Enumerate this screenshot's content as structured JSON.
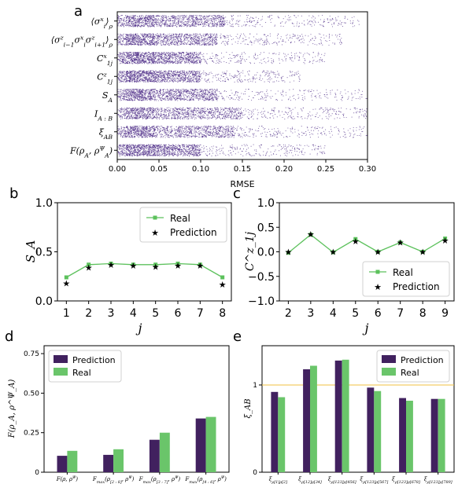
{
  "chart_data": [
    {
      "panel": "a",
      "type": "scatter",
      "xlabel": "RMSE",
      "xlim": [
        0,
        0.3
      ],
      "xticks": [
        "0.00",
        "0.05",
        "0.10",
        "0.15",
        "0.20",
        "0.25",
        "0.30"
      ],
      "categories": [
        "⟨σ^x_i⟩_ρ",
        "⟨σ^z_{i−1}σ^x_iσ^z_{i+1}⟩_ρ",
        "C^x_1j",
        "C^z_1j",
        "S_A",
        "I_A:B",
        "ξ_AB",
        "F(ρ_A, ρ^Ψ_A)"
      ],
      "color": "#4b2a85",
      "point_density": [
        {
          "core": [
            0.0,
            0.13
          ],
          "tail_max": 0.29
        },
        {
          "core": [
            0.0,
            0.12
          ],
          "tail_max": 0.27
        },
        {
          "core": [
            0.0,
            0.1
          ],
          "tail_max": 0.25
        },
        {
          "core": [
            0.0,
            0.1
          ],
          "tail_max": 0.22
        },
        {
          "core": [
            0.0,
            0.12
          ],
          "tail_max": 0.3
        },
        {
          "core": [
            0.0,
            0.15
          ],
          "tail_max": 0.3
        },
        {
          "core": [
            0.0,
            0.14
          ],
          "tail_max": 0.3
        },
        {
          "core": [
            0.0,
            0.1
          ],
          "tail_max": 0.25
        }
      ]
    },
    {
      "panel": "b",
      "type": "line",
      "ylabel": "S_A",
      "xlabel": "j",
      "x": [
        1,
        2,
        3,
        4,
        5,
        6,
        7,
        8
      ],
      "ylim": [
        0,
        1.0
      ],
      "yticks": [
        "0.0",
        "0.5",
        "1.0"
      ],
      "series": [
        {
          "name": "Real",
          "color": "#5cc15c",
          "values": [
            0.24,
            0.37,
            0.38,
            0.37,
            0.37,
            0.38,
            0.37,
            0.24
          ]
        },
        {
          "name": "Prediction",
          "color": "#3b1e6e",
          "values": [
            0.18,
            0.34,
            0.37,
            0.36,
            0.35,
            0.36,
            0.36,
            0.17
          ]
        }
      ],
      "legend": "top-right"
    },
    {
      "panel": "c",
      "type": "line",
      "ylabel": "C^z_1j",
      "xlabel": "j",
      "x": [
        2,
        3,
        4,
        5,
        6,
        7,
        8,
        9
      ],
      "ylim": [
        -1.0,
        1.0
      ],
      "yticks": [
        "−1.0",
        "−0.5",
        "0.0",
        "0.5",
        "1.0"
      ],
      "series": [
        {
          "name": "Real",
          "color": "#5cc15c",
          "values": [
            -0.02,
            0.35,
            -0.01,
            0.26,
            0.0,
            0.19,
            0.0,
            0.27
          ]
        },
        {
          "name": "Prediction",
          "color": "#3b1e6e",
          "values": [
            0.0,
            0.36,
            0.0,
            0.22,
            0.0,
            0.19,
            0.0,
            0.23
          ]
        }
      ],
      "legend": "bottom-right"
    },
    {
      "panel": "d",
      "type": "bar",
      "ylabel": "F(ρ_A, ρ^Ψ_A)",
      "categories": [
        "F(ρ, ρ^Ψ)",
        "F_max(ρ_[2:8], ρ^Ψ_[2:8])",
        "F_max(ρ_[3:7], ρ^Ψ_[3:7])",
        "F_max(ρ_[4:6], ρ^Ψ_[4:6])"
      ],
      "ylim": [
        0,
        0.8
      ],
      "yticks": [
        "0",
        "0.25",
        "0.50",
        "0.75"
      ],
      "series": [
        {
          "name": "Prediction",
          "color": "#41215f",
          "values": [
            0.104,
            0.11,
            0.205,
            0.34
          ]
        },
        {
          "name": "Real",
          "color": "#6ac56a",
          "values": [
            0.135,
            0.145,
            0.25,
            0.35
          ]
        }
      ],
      "legend": "top-left"
    },
    {
      "panel": "e",
      "type": "bar",
      "ylabel": "ξ_AB",
      "categories": [
        "ξ_ρ[1]ρ[2]",
        "ξ_ρ[12]ρ[34]",
        "ξ_ρ[123]ρ[456]",
        "ξ_ρ[123]ρ[567]",
        "ξ_ρ[123]ρ[678]",
        "ξ_ρ[123]ρ[789]"
      ],
      "ylim": [
        0,
        1.45
      ],
      "yticks": [
        "0",
        "1"
      ],
      "reference_line": {
        "y": 1.0,
        "color": "#f0c040"
      },
      "series": [
        {
          "name": "Prediction",
          "color": "#41215f",
          "values": [
            0.92,
            1.18,
            1.28,
            0.97,
            0.85,
            0.84
          ]
        },
        {
          "name": "Real",
          "color": "#6ac56a",
          "values": [
            0.86,
            1.22,
            1.29,
            0.93,
            0.82,
            0.84
          ]
        }
      ],
      "legend": "top-right"
    }
  ],
  "labels": {
    "a": "a",
    "b": "b",
    "c": "c",
    "d": "d",
    "e": "e"
  }
}
